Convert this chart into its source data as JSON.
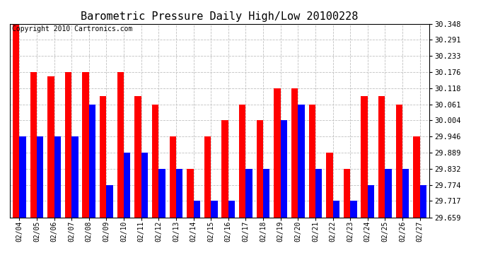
{
  "title": "Barometric Pressure Daily High/Low 20100228",
  "copyright": "Copyright 2010 Cartronics.com",
  "dates": [
    "02/04",
    "02/05",
    "02/06",
    "02/07",
    "02/08",
    "02/09",
    "02/10",
    "02/11",
    "02/12",
    "02/13",
    "02/14",
    "02/15",
    "02/16",
    "02/17",
    "02/18",
    "02/19",
    "02/20",
    "02/21",
    "02/22",
    "02/23",
    "02/24",
    "02/25",
    "02/26",
    "02/27"
  ],
  "highs": [
    30.348,
    30.176,
    30.16,
    30.176,
    30.176,
    30.09,
    30.176,
    30.09,
    30.061,
    29.946,
    29.832,
    29.946,
    30.004,
    30.061,
    30.004,
    30.118,
    30.118,
    30.061,
    29.889,
    29.832,
    30.09,
    30.09,
    30.061,
    29.946
  ],
  "lows": [
    29.946,
    29.946,
    29.946,
    29.946,
    30.061,
    29.774,
    29.889,
    29.889,
    29.832,
    29.832,
    29.717,
    29.717,
    29.717,
    29.832,
    29.832,
    30.004,
    30.061,
    29.832,
    29.717,
    29.717,
    29.774,
    29.832,
    29.832,
    29.774
  ],
  "high_color": "#ff0000",
  "low_color": "#0000ff",
  "bg_color": "#ffffff",
  "grid_color": "#c0c0c0",
  "yticks": [
    29.659,
    29.717,
    29.774,
    29.832,
    29.889,
    29.946,
    30.004,
    30.061,
    30.118,
    30.176,
    30.233,
    30.291,
    30.348
  ],
  "ymin": 29.659,
  "ymax": 30.348,
  "title_fontsize": 11,
  "copyright_fontsize": 7
}
